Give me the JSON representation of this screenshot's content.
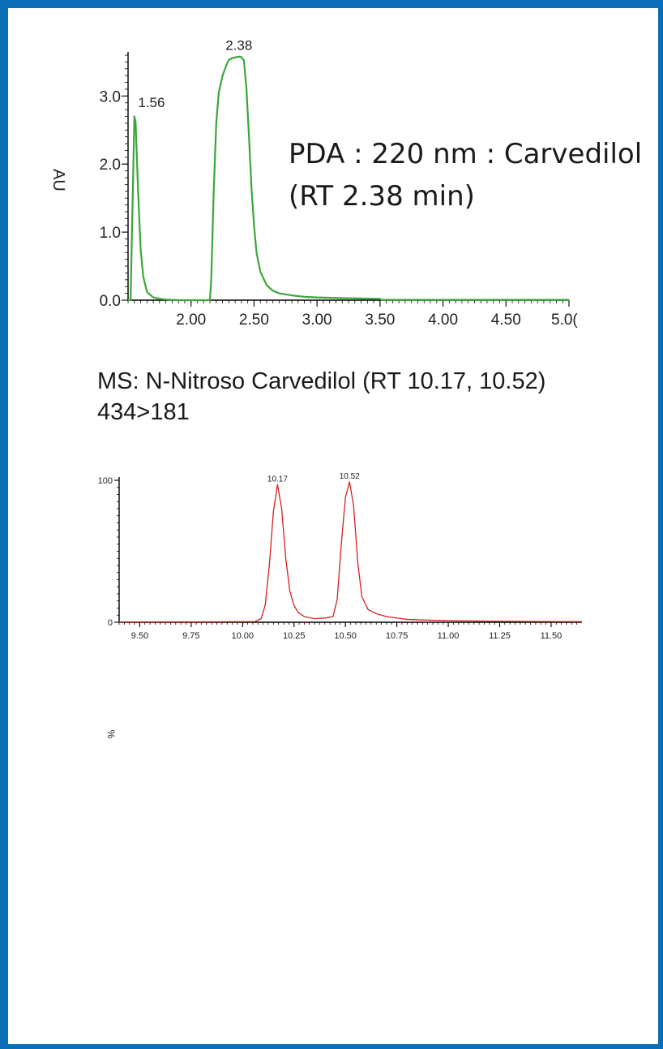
{
  "panels": {
    "pda": {
      "caption_line1": "PDA : 220 nm : Carvedilol",
      "caption_line2": "(RT 2.38 min)"
    },
    "ms": {
      "caption_line1": "MS: N-Nitroso Carvedilol (RT 10.17, 10.52)",
      "caption_line2": "434>181"
    }
  },
  "colors": {
    "frame": "#0a6db5",
    "pda_trace": "#3aa63a",
    "ms_trace": "#d42020",
    "axis": "#000000"
  },
  "chart_data": [
    {
      "type": "line",
      "title": "",
      "xlabel": "",
      "ylabel": "AU",
      "xlim": [
        1.5,
        5.0
      ],
      "ylim": [
        0,
        3.6
      ],
      "x_ticks": [
        "2.00",
        "2.50",
        "3.00",
        "3.50",
        "4.00",
        "4.50",
        "5.0("
      ],
      "y_ticks": [
        "0.0",
        "1.0",
        "2.0",
        "3.0"
      ],
      "grid": false,
      "series": [
        {
          "x": [
            1.5,
            1.52,
            1.55,
            1.56,
            1.58,
            1.6,
            1.62,
            1.65,
            1.7,
            1.75,
            1.8,
            1.9,
            2.0,
            2.1,
            2.15,
            2.16,
            2.18,
            2.2,
            2.22,
            2.25,
            2.28,
            2.3,
            2.33,
            2.36,
            2.38,
            2.4,
            2.42,
            2.44,
            2.46,
            2.48,
            2.5,
            2.52,
            2.55,
            2.6,
            2.65,
            2.7,
            2.8,
            2.9,
            3.0,
            3.2,
            3.5,
            3.51,
            3.8,
            4.2,
            4.6,
            5.0
          ],
          "y": [
            0.0,
            0.0,
            2.7,
            2.62,
            1.6,
            0.75,
            0.35,
            0.12,
            0.04,
            0.02,
            0.01,
            0.0,
            0.0,
            0.0,
            0.0,
            0.3,
            1.6,
            2.6,
            3.05,
            3.3,
            3.45,
            3.53,
            3.56,
            3.57,
            3.58,
            3.57,
            3.52,
            3.1,
            2.4,
            1.65,
            1.1,
            0.7,
            0.42,
            0.22,
            0.14,
            0.1,
            0.07,
            0.05,
            0.04,
            0.03,
            0.02,
            0.005,
            0.005,
            0.005,
            0.005,
            0.005
          ]
        }
      ],
      "peak_labels": [
        {
          "x": 1.56,
          "y": 2.62,
          "text": "1.56"
        },
        {
          "x": 2.38,
          "y": 3.58,
          "text": "2.38"
        }
      ]
    },
    {
      "type": "line",
      "title": "",
      "xlabel": "",
      "ylabel": "%",
      "xlim": [
        9.4,
        11.65
      ],
      "ylim": [
        0,
        100
      ],
      "x_ticks": [
        "9.50",
        "9.75",
        "10.00",
        "10.25",
        "10.50",
        "10.75",
        "11.00",
        "11.25",
        "11.50"
      ],
      "y_ticks": [
        "0",
        "100"
      ],
      "grid": false,
      "series": [
        {
          "x": [
            9.4,
            9.8,
            10.06,
            10.09,
            10.11,
            10.13,
            10.15,
            10.17,
            10.19,
            10.21,
            10.23,
            10.25,
            10.27,
            10.3,
            10.35,
            10.4,
            10.44,
            10.46,
            10.48,
            10.5,
            10.52,
            10.54,
            10.56,
            10.58,
            10.61,
            10.65,
            10.7,
            10.8,
            10.9,
            11.0,
            11.2,
            11.4,
            11.65
          ],
          "y": [
            0.2,
            0.3,
            0.5,
            2.5,
            12.0,
            40.0,
            78.0,
            97.0,
            80.0,
            45.0,
            22.0,
            12.0,
            7.0,
            4.0,
            2.5,
            3.0,
            4.0,
            16.0,
            55.0,
            88.0,
            99.0,
            82.0,
            42.0,
            18.0,
            9.0,
            6.0,
            4.0,
            2.0,
            1.5,
            1.2,
            0.8,
            0.6,
            0.4
          ]
        }
      ],
      "peak_labels": [
        {
          "x": 10.17,
          "y": 97.0,
          "text": "10.17"
        },
        {
          "x": 10.52,
          "y": 99.0,
          "text": "10.52"
        }
      ]
    }
  ]
}
